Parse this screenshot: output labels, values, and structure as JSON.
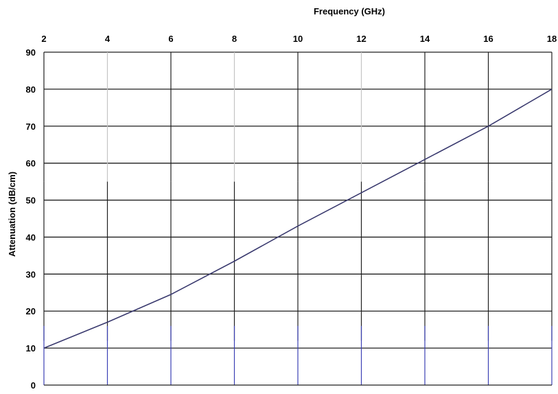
{
  "chart_data": {
    "type": "line",
    "title": "",
    "xlabel": "Frequency (GHz)",
    "ylabel": "Attenuation (dB/cm)",
    "xlim": [
      2,
      18
    ],
    "ylim": [
      0,
      90
    ],
    "x_ticks": [
      2,
      4,
      6,
      8,
      10,
      12,
      14,
      16,
      18
    ],
    "y_ticks": [
      0,
      10,
      20,
      30,
      40,
      50,
      60,
      70,
      80,
      90
    ],
    "x_axis_position": "top",
    "grid": true,
    "series": [
      {
        "x": [
          2,
          4,
          6,
          8,
          10,
          12,
          14,
          16,
          18
        ],
        "y": [
          10,
          17,
          24.5,
          33.5,
          43,
          52,
          61,
          70,
          80
        ]
      }
    ],
    "colors": {
      "line": "#39396e",
      "grid_dark": "#1e1e1e",
      "grid_light": "#c4c4c4",
      "grid_blue": "#3a3fb4"
    }
  }
}
